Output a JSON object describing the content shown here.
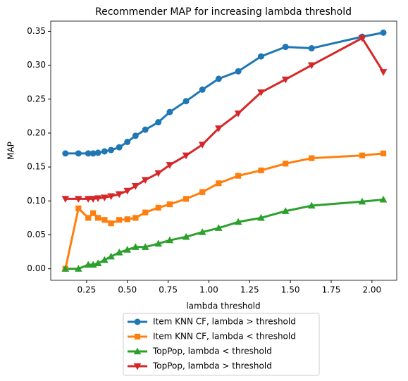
{
  "chart_data": {
    "type": "line",
    "title": "Recommender MAP for increasing lambda threshold",
    "x_label": "lambda threshold",
    "y_label": "MAP",
    "x": [
      0.12,
      0.2,
      0.26,
      0.29,
      0.32,
      0.36,
      0.4,
      0.45,
      0.5,
      0.55,
      0.61,
      0.69,
      0.76,
      0.86,
      0.96,
      1.06,
      1.18,
      1.32,
      1.47,
      1.63,
      1.94,
      2.07
    ],
    "series": [
      {
        "name": "Item KNN CF, lambda > threshold",
        "color": "#1f77b4",
        "marker": "circle",
        "values": [
          0.17,
          0.17,
          0.17,
          0.17,
          0.171,
          0.173,
          0.175,
          0.179,
          0.187,
          0.196,
          0.205,
          0.216,
          0.231,
          0.247,
          0.264,
          0.28,
          0.291,
          0.313,
          0.327,
          0.325,
          0.342,
          0.348
        ]
      },
      {
        "name": "Item KNN CF, lambda < threshold",
        "color": "#ff7f0e",
        "marker": "square",
        "values": [
          0.0,
          0.089,
          0.075,
          0.082,
          0.075,
          0.072,
          0.067,
          0.072,
          0.073,
          0.075,
          0.083,
          0.09,
          0.095,
          0.103,
          0.113,
          0.126,
          0.137,
          0.145,
          0.155,
          0.163,
          0.167,
          0.17
        ]
      },
      {
        "name": "TopPop, lambda < threshold",
        "color": "#2ca02c",
        "marker": "triangle-up",
        "values": [
          0.0,
          0.0,
          0.006,
          0.006,
          0.008,
          0.013,
          0.018,
          0.024,
          0.028,
          0.032,
          0.032,
          0.037,
          0.042,
          0.047,
          0.054,
          0.06,
          0.069,
          0.075,
          0.085,
          0.093,
          0.099,
          0.102
        ]
      },
      {
        "name": "TopPop, lambda > threshold",
        "color": "#d62728",
        "marker": "triangle-down",
        "values": [
          0.103,
          0.103,
          0.103,
          0.103,
          0.104,
          0.105,
          0.107,
          0.11,
          0.115,
          0.122,
          0.131,
          0.141,
          0.153,
          0.167,
          0.183,
          0.207,
          0.229,
          0.26,
          0.279,
          0.3,
          0.34,
          0.29
        ]
      }
    ],
    "xlim": [
      0.03,
      2.152
    ],
    "ylim": [
      -0.017,
      0.365
    ],
    "xticks": [
      {
        "value": 0.25,
        "label": "0.25"
      },
      {
        "value": 0.5,
        "label": "0.50"
      },
      {
        "value": 0.75,
        "label": "0.75"
      },
      {
        "value": 1.0,
        "label": "1.00"
      },
      {
        "value": 1.25,
        "label": "1.25"
      },
      {
        "value": 1.5,
        "label": "1.50"
      },
      {
        "value": 1.75,
        "label": "1.75"
      },
      {
        "value": 2.0,
        "label": "2.00"
      }
    ],
    "yticks": [
      {
        "value": 0,
        "label": "0.00"
      },
      {
        "value": 0.05,
        "label": "0.05"
      },
      {
        "value": 0.1,
        "label": "0.10"
      },
      {
        "value": 0.15,
        "label": "0.15"
      },
      {
        "value": 0.2,
        "label": "0.20"
      },
      {
        "value": 0.25,
        "label": "0.25"
      },
      {
        "value": 0.3,
        "label": "0.30"
      },
      {
        "value": 0.35,
        "label": "0.35"
      }
    ],
    "legend": "below"
  }
}
